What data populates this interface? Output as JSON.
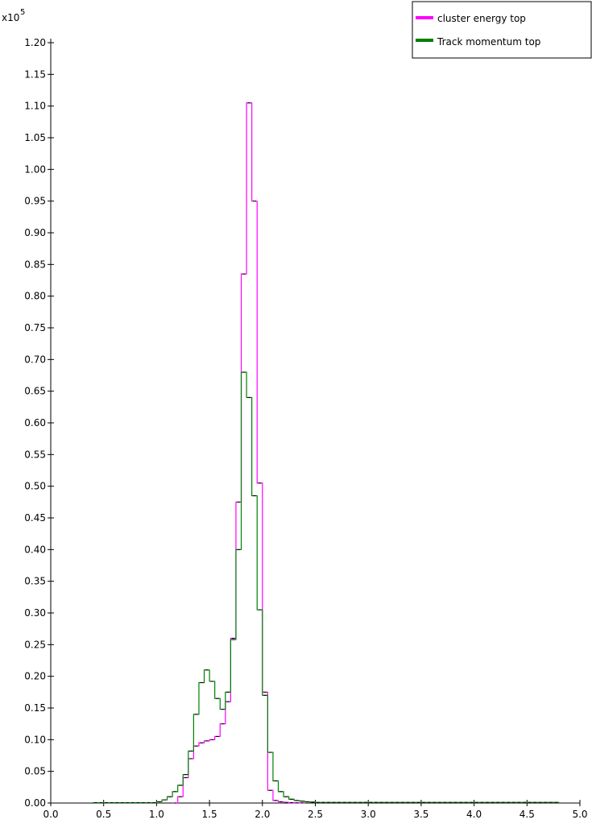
{
  "chart_data": {
    "type": "line",
    "title": "",
    "xlabel": "",
    "ylabel": "",
    "y_multiplier_label": "x10",
    "y_multiplier_exponent": "5",
    "xlim": [
      0.0,
      5.0
    ],
    "ylim": [
      0.0,
      1.2
    ],
    "x_ticks": [
      "0.0",
      "0.5",
      "1.0",
      "1.5",
      "2.0",
      "2.5",
      "3.0",
      "3.5",
      "4.0",
      "4.5",
      "5.0"
    ],
    "y_ticks": [
      "0.00",
      "0.05",
      "0.10",
      "0.15",
      "0.20",
      "0.25",
      "0.30",
      "0.35",
      "0.40",
      "0.45",
      "0.50",
      "0.55",
      "0.60",
      "0.65",
      "0.70",
      "0.75",
      "0.80",
      "0.85",
      "0.90",
      "0.95",
      "1.00",
      "1.05",
      "1.10",
      "1.15",
      "1.20"
    ],
    "grid": false,
    "legend_position": "top-right",
    "bin_width": 0.05,
    "series": [
      {
        "name": "cluster energy top",
        "color": "#ff00ff",
        "bin_starts": [
          1.15,
          1.2,
          1.25,
          1.3,
          1.35,
          1.4,
          1.45,
          1.5,
          1.55,
          1.6,
          1.65,
          1.7,
          1.75,
          1.8,
          1.85,
          1.9,
          1.95,
          2.0,
          2.05,
          2.1,
          2.15,
          2.2,
          2.25,
          2.3,
          2.35
        ],
        "values": [
          0.0,
          0.01,
          0.04,
          0.07,
          0.09,
          0.095,
          0.098,
          0.1,
          0.105,
          0.125,
          0.16,
          0.26,
          0.475,
          0.835,
          1.105,
          0.95,
          0.505,
          0.175,
          0.02,
          0.004,
          0.002,
          0.001,
          0.0005,
          0.0003,
          0.0002
        ]
      },
      {
        "name": "Track momentum top",
        "color": "#007f00",
        "bin_starts": [
          0.4,
          0.45,
          0.5,
          0.55,
          0.6,
          0.65,
          0.7,
          0.75,
          0.8,
          0.85,
          0.9,
          0.95,
          1.0,
          1.05,
          1.1,
          1.15,
          1.2,
          1.25,
          1.3,
          1.35,
          1.4,
          1.45,
          1.5,
          1.55,
          1.6,
          1.65,
          1.7,
          1.75,
          1.8,
          1.85,
          1.9,
          1.95,
          2.0,
          2.05,
          2.1,
          2.15,
          2.2,
          2.25,
          2.3,
          2.35,
          2.4,
          2.45,
          2.5,
          2.55,
          2.6,
          2.65,
          2.7,
          2.75,
          2.8,
          2.85,
          2.9,
          2.95,
          3.0,
          3.05,
          3.1,
          3.15,
          3.2,
          3.25,
          3.3,
          3.35,
          3.4,
          3.45,
          3.5,
          3.55,
          3.6,
          3.65,
          3.7,
          3.75,
          3.8,
          3.85,
          3.9,
          3.95,
          4.0,
          4.05,
          4.1,
          4.15,
          4.2,
          4.25,
          4.3,
          4.35,
          4.4,
          4.45,
          4.5,
          4.55,
          4.6,
          4.65,
          4.7,
          4.75
        ],
        "values": [
          0.0005,
          0.0005,
          0.0005,
          0.0005,
          0.0005,
          0.0005,
          0.0005,
          0.0005,
          0.0005,
          0.0005,
          0.0005,
          0.0005,
          0.002,
          0.005,
          0.01,
          0.018,
          0.028,
          0.045,
          0.082,
          0.14,
          0.19,
          0.21,
          0.192,
          0.165,
          0.148,
          0.175,
          0.258,
          0.4,
          0.68,
          0.64,
          0.485,
          0.305,
          0.17,
          0.08,
          0.035,
          0.018,
          0.01,
          0.006,
          0.004,
          0.003,
          0.002,
          0.0015,
          0.001,
          0.001,
          0.001,
          0.001,
          0.001,
          0.001,
          0.001,
          0.001,
          0.001,
          0.001,
          0.001,
          0.001,
          0.001,
          0.001,
          0.001,
          0.001,
          0.001,
          0.001,
          0.001,
          0.001,
          0.001,
          0.001,
          0.001,
          0.001,
          0.001,
          0.001,
          0.001,
          0.001,
          0.001,
          0.001,
          0.001,
          0.001,
          0.001,
          0.001,
          0.001,
          0.001,
          0.001,
          0.001,
          0.001,
          0.001,
          0.001,
          0.001,
          0.001,
          0.001,
          0.001,
          0.001
        ]
      }
    ]
  }
}
